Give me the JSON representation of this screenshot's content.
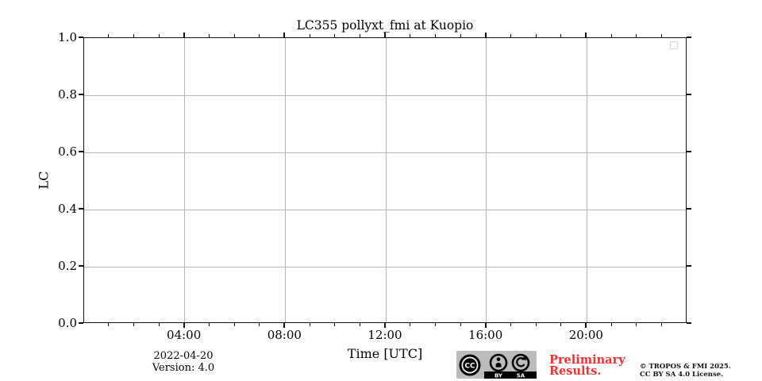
{
  "chart_data": {
    "type": "line",
    "title": "LC355 pollyxt_fmi at Kuopio",
    "xlabel": "Time [UTC]",
    "ylabel": "LC",
    "x_axis": {
      "min_hours": 0,
      "max_hours": 24,
      "major_ticks_hours": [
        4,
        8,
        12,
        16,
        20
      ],
      "major_tick_labels": [
        "04:00",
        "08:00",
        "12:00",
        "16:00",
        "20:00"
      ],
      "minor_tick_step_hours": 1
    },
    "y_axis": {
      "min": 0.0,
      "max": 1.0,
      "major_ticks": [
        0.0,
        0.2,
        0.4,
        0.6,
        0.8,
        1.0
      ],
      "major_tick_labels": [
        "0.0",
        "0.2",
        "0.4",
        "0.6",
        "0.8",
        "1.0"
      ]
    },
    "grid": true,
    "legend": {
      "position": "top-right",
      "entries": []
    },
    "series": []
  },
  "footer": {
    "date": "2022-04-20",
    "version": "Version: 4.0",
    "cc_badge": {
      "cc": "CC",
      "by": "BY",
      "sa": "SA"
    },
    "preliminary_line1": "Preliminary",
    "preliminary_line2": "Results.",
    "copyright_line1": "© TROPOS & FMI 2025.",
    "copyright_line2": "CC BY SA 4.0 License."
  },
  "colors": {
    "axis": "#111111",
    "grid": "#b5b5b5",
    "preliminary_red": "#f43030",
    "badge_gray": "#bcbcbc",
    "legend_border": "#d4d4d4"
  }
}
